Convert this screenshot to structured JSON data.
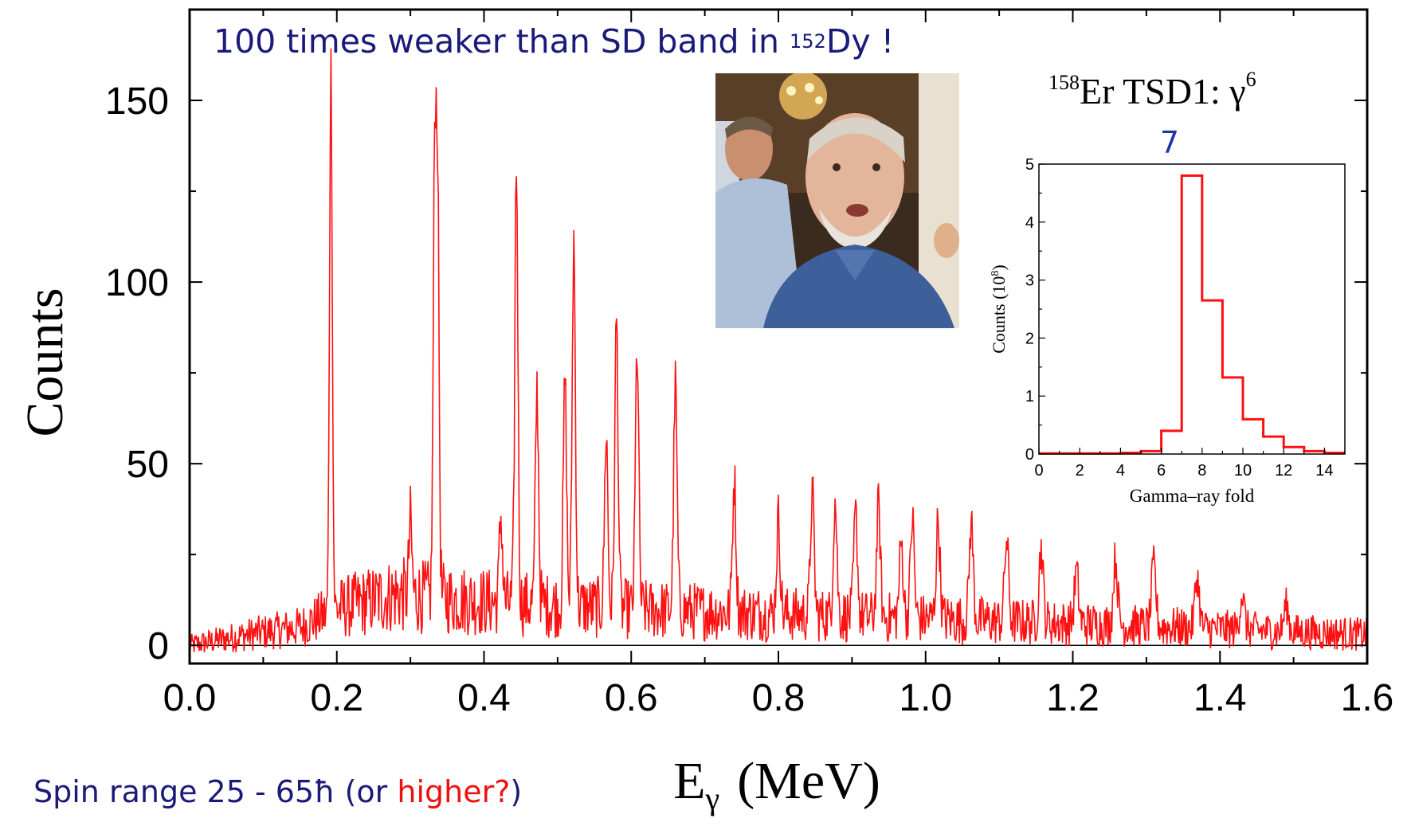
{
  "headline": {
    "text": "100 times weaker than SD band in ",
    "nuclide_mass": "152",
    "nuclide_symbol": "Dy !"
  },
  "footnote": {
    "prefix": "Spin range 25 - 65ħ (or ",
    "highlight": "higher?",
    "suffix": ")"
  },
  "photo": {
    "icon": "photo-of-two-men-icon"
  },
  "colors": {
    "series": "#ff1111",
    "text_blue": "#1a1a7a",
    "annotation_blue": "#2233aa",
    "axis": "#000000",
    "highlight": "#ee1111"
  },
  "chart_data": [
    {
      "type": "line",
      "title": "",
      "xlabel_main": "E",
      "xlabel_sub": "γ",
      "xlabel_unit": "(MeV)",
      "ylabel": "Counts",
      "xlim": [
        0.0,
        1.6
      ],
      "ylim": [
        -5,
        175
      ],
      "x_ticks": [
        "0.0",
        "0.2",
        "0.4",
        "0.6",
        "0.8",
        "1.0",
        "1.2",
        "1.4",
        "1.6"
      ],
      "y_ticks": [
        "0",
        "50",
        "100",
        "150"
      ],
      "grid": false,
      "legend": "none",
      "baseline": 0,
      "peaks": [
        {
          "x": 0.192,
          "y": 160
        },
        {
          "x": 0.3,
          "y": 34
        },
        {
          "x": 0.333,
          "y": 130
        },
        {
          "x": 0.337,
          "y": 122
        },
        {
          "x": 0.423,
          "y": 36
        },
        {
          "x": 0.444,
          "y": 133
        },
        {
          "x": 0.472,
          "y": 71
        },
        {
          "x": 0.51,
          "y": 73
        },
        {
          "x": 0.522,
          "y": 112
        },
        {
          "x": 0.566,
          "y": 59
        },
        {
          "x": 0.58,
          "y": 90
        },
        {
          "x": 0.608,
          "y": 82
        },
        {
          "x": 0.66,
          "y": 72
        },
        {
          "x": 0.74,
          "y": 46
        },
        {
          "x": 0.8,
          "y": 35
        },
        {
          "x": 0.846,
          "y": 42
        },
        {
          "x": 0.877,
          "y": 40
        },
        {
          "x": 0.905,
          "y": 36
        },
        {
          "x": 0.936,
          "y": 38
        },
        {
          "x": 0.967,
          "y": 28
        },
        {
          "x": 0.982,
          "y": 35
        },
        {
          "x": 1.017,
          "y": 34
        },
        {
          "x": 1.062,
          "y": 34
        },
        {
          "x": 1.11,
          "y": 29
        },
        {
          "x": 1.157,
          "y": 27
        },
        {
          "x": 1.205,
          "y": 20
        },
        {
          "x": 1.258,
          "y": 24
        },
        {
          "x": 1.31,
          "y": 22
        },
        {
          "x": 1.369,
          "y": 19
        },
        {
          "x": 1.43,
          "y": 14
        },
        {
          "x": 1.49,
          "y": 11
        }
      ],
      "background": [
        {
          "x": 0.0,
          "y": 0
        },
        {
          "x": 0.08,
          "y": 3
        },
        {
          "x": 0.15,
          "y": 5
        },
        {
          "x": 0.2,
          "y": 10
        },
        {
          "x": 0.28,
          "y": 14
        },
        {
          "x": 0.4,
          "y": 12
        },
        {
          "x": 0.6,
          "y": 10
        },
        {
          "x": 0.9,
          "y": 8
        },
        {
          "x": 1.2,
          "y": 6
        },
        {
          "x": 1.6,
          "y": 3
        }
      ]
    },
    {
      "type": "line",
      "title_mass": "158",
      "title_text": "Er TSD1: γ",
      "title_sup": "6",
      "annotation": "7",
      "xlabel": "Gamma–ray fold",
      "ylabel": "Counts (10",
      "ylabel_exp": "8",
      "ylabel_close": ")",
      "xlim": [
        0,
        15
      ],
      "ylim": [
        0,
        5
      ],
      "x_ticks": [
        "0",
        "2",
        "4",
        "6",
        "8",
        "10",
        "12",
        "14"
      ],
      "y_ticks": [
        "0",
        "1",
        "2",
        "3",
        "4",
        "5"
      ],
      "grid": false,
      "legend": "none",
      "step_edges": [
        0,
        1,
        2,
        3,
        4,
        5,
        6,
        7,
        8,
        9,
        10,
        11,
        12,
        13,
        14,
        15
      ],
      "step_values": [
        0.01,
        0.01,
        0.01,
        0.01,
        0.02,
        0.05,
        0.4,
        4.8,
        2.65,
        1.32,
        0.6,
        0.3,
        0.12,
        0.05,
        0.02
      ]
    }
  ]
}
